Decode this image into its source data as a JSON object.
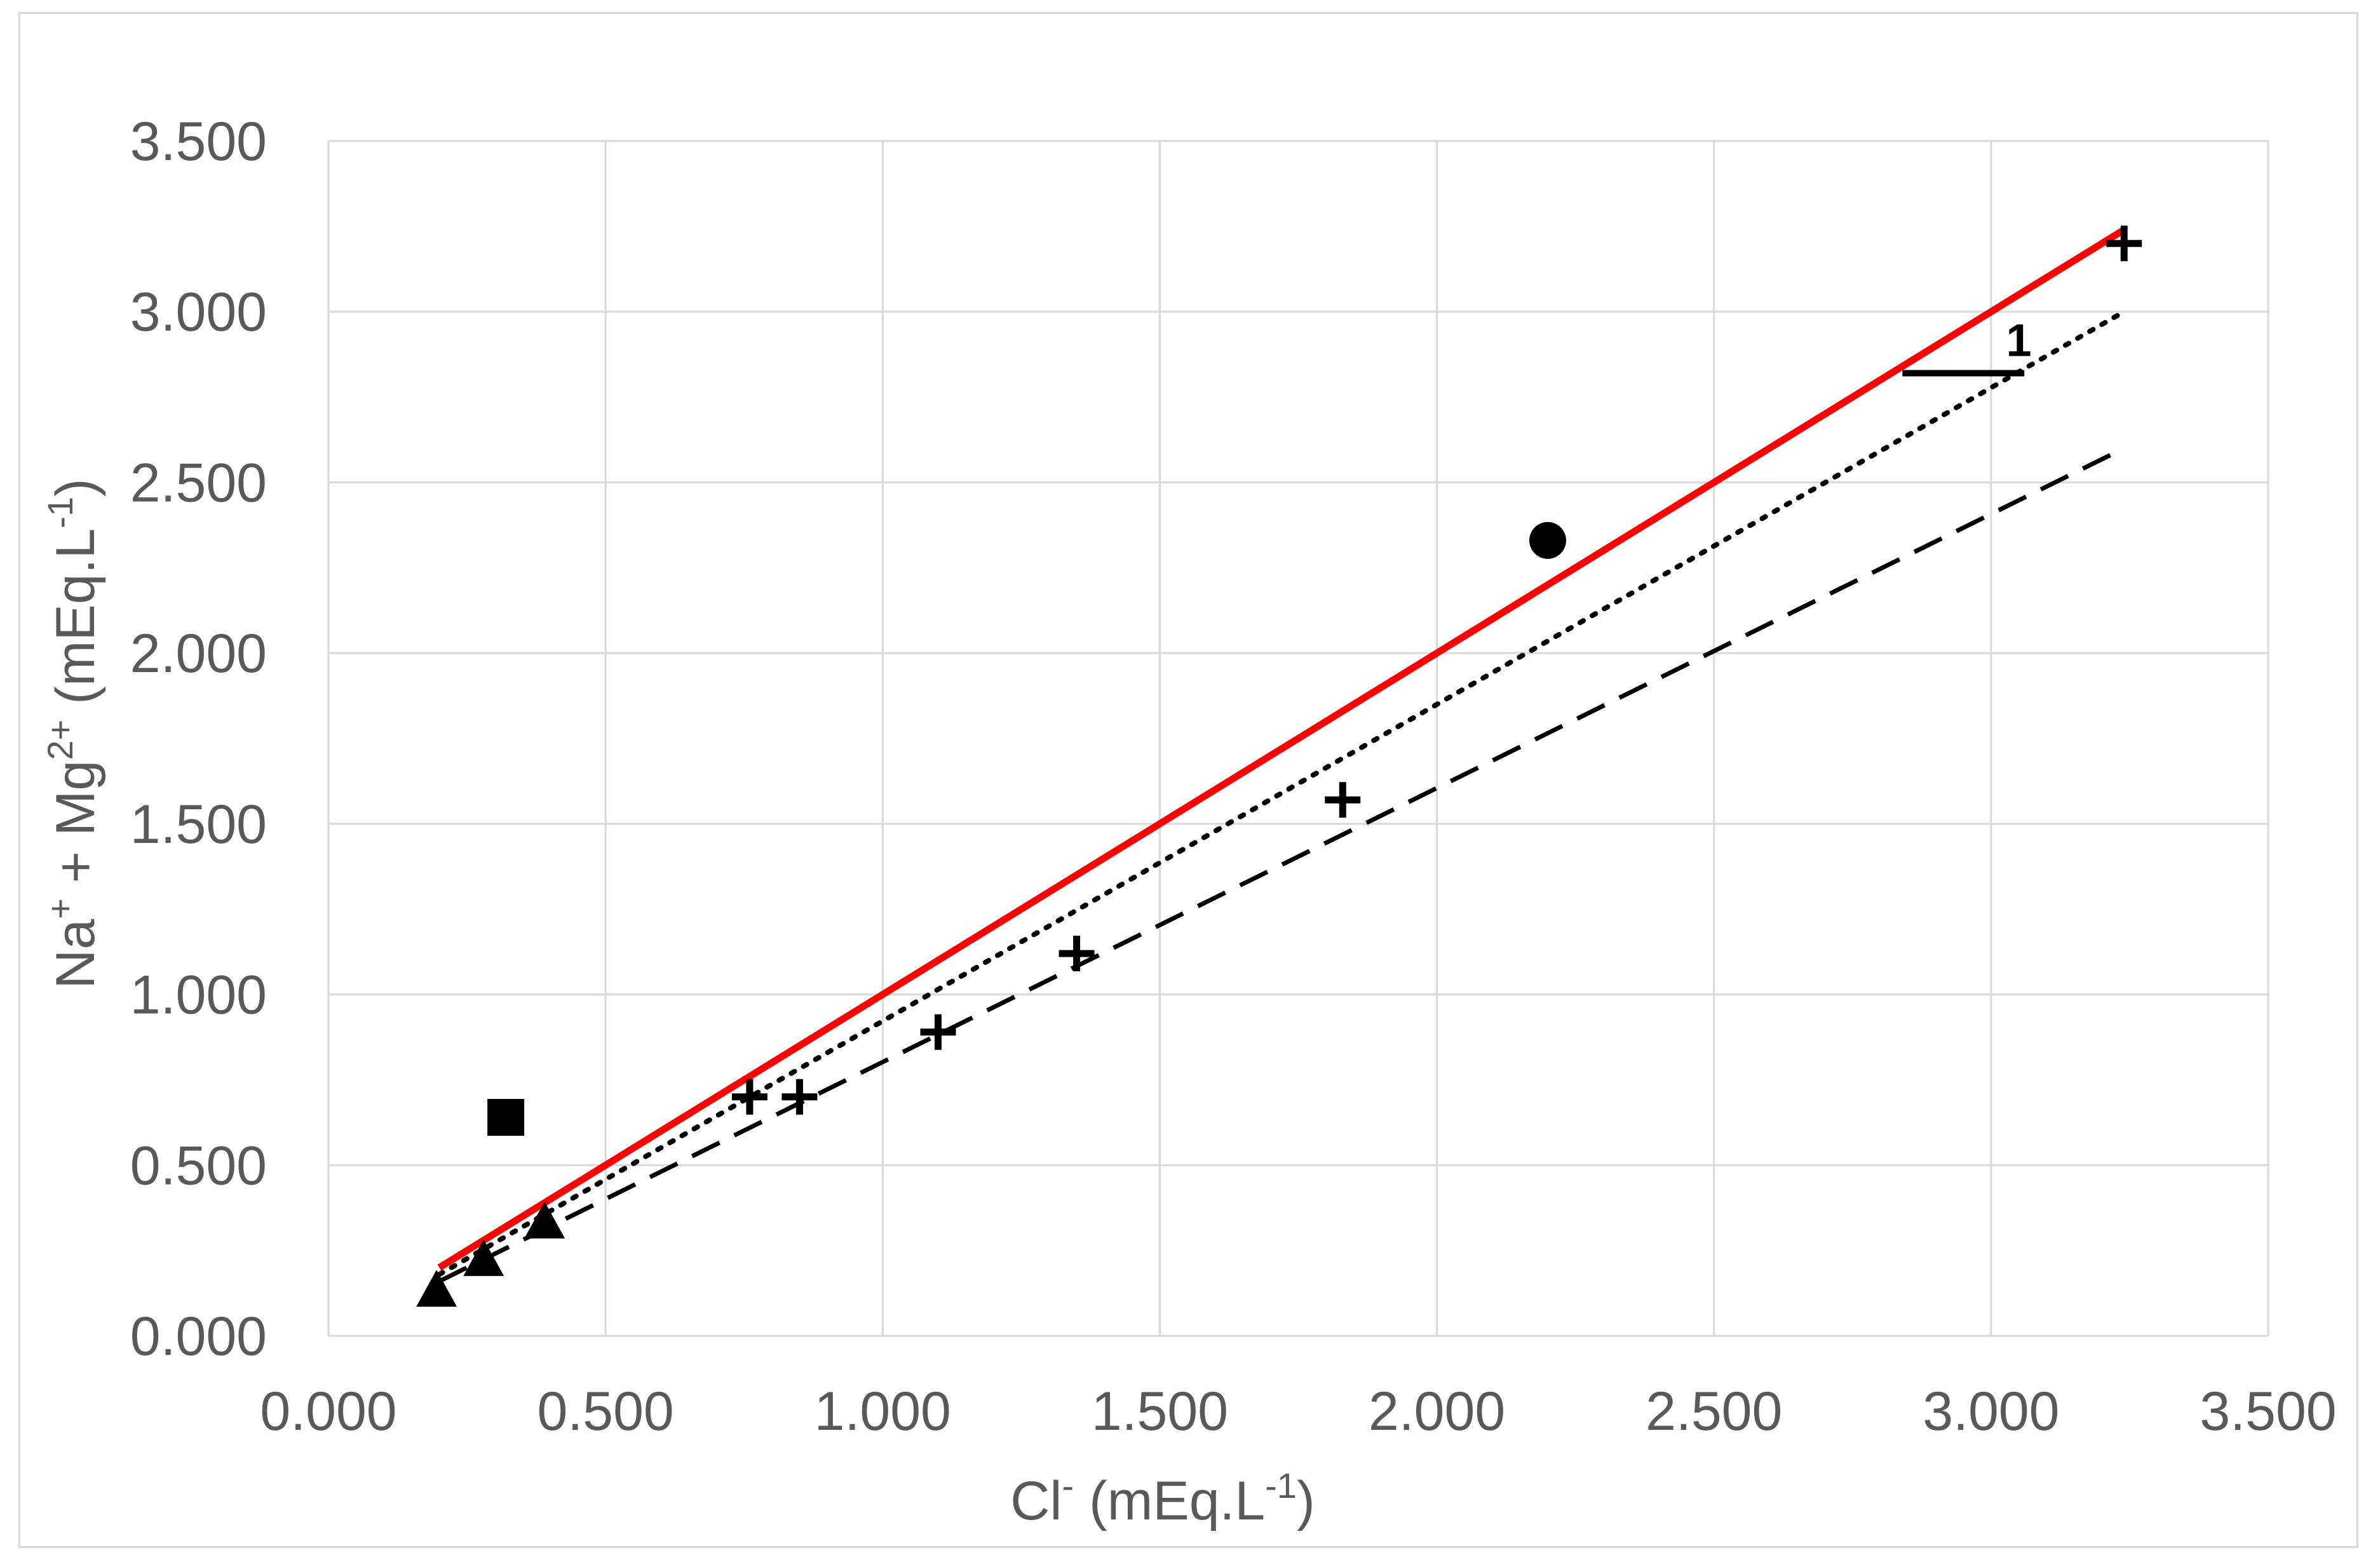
{
  "chart_data": {
    "type": "scatter",
    "xlabel": {
      "base": "Cl",
      "sup1": "-",
      "units": " (mEq.L",
      "sup2": "-1",
      "close": ")"
    },
    "ylabel": {
      "na": "Na",
      "na_sup": "+",
      "plus": " + ",
      "mg": "Mg",
      "mg_sup": "2+",
      "units": " (mEq.L",
      "units_sup": "-1",
      "close": ")"
    },
    "xlim": [
      0,
      3.5
    ],
    "ylim": [
      0,
      3.5
    ],
    "x_ticks": [
      "0.000",
      "0.500",
      "1.000",
      "1.500",
      "2.000",
      "2.500",
      "3.000",
      "3.500"
    ],
    "y_ticks": [
      "0.000",
      "0.500",
      "1.000",
      "1.500",
      "2.000",
      "2.500",
      "3.000",
      "3.500"
    ],
    "tick_step": 0.5,
    "grid": true,
    "series": [
      {
        "marker": "triangle",
        "points": [
          [
            0.195,
            0.13
          ],
          [
            0.28,
            0.22
          ],
          [
            0.39,
            0.33
          ]
        ]
      },
      {
        "marker": "square",
        "points": [
          [
            0.32,
            0.64
          ]
        ]
      },
      {
        "marker": "cross",
        "points": [
          [
            0.76,
            0.7
          ],
          [
            0.85,
            0.7
          ],
          [
            1.1,
            0.89
          ],
          [
            1.35,
            1.12
          ],
          [
            1.83,
            1.57
          ],
          [
            3.24,
            3.2
          ]
        ]
      },
      {
        "marker": "circle",
        "points": [
          [
            2.2,
            2.33
          ]
        ]
      }
    ],
    "lines": [
      {
        "style": "solid",
        "color": "#ff0000",
        "from": [
          0.2,
          0.2
        ],
        "to": [
          3.24,
          3.24
        ]
      },
      {
        "style": "dotted",
        "color": "#000000",
        "from": [
          0.2,
          0.18
        ],
        "to": [
          3.24,
          3.0
        ]
      },
      {
        "style": "dashed",
        "color": "#000000",
        "from": [
          0.2,
          0.16
        ],
        "to": [
          3.24,
          2.6
        ]
      }
    ],
    "annotation": {
      "text": "1",
      "line_from": [
        2.84,
        2.82
      ],
      "line_to": [
        3.06,
        2.82
      ],
      "label_at": [
        3.05,
        2.87
      ]
    }
  }
}
